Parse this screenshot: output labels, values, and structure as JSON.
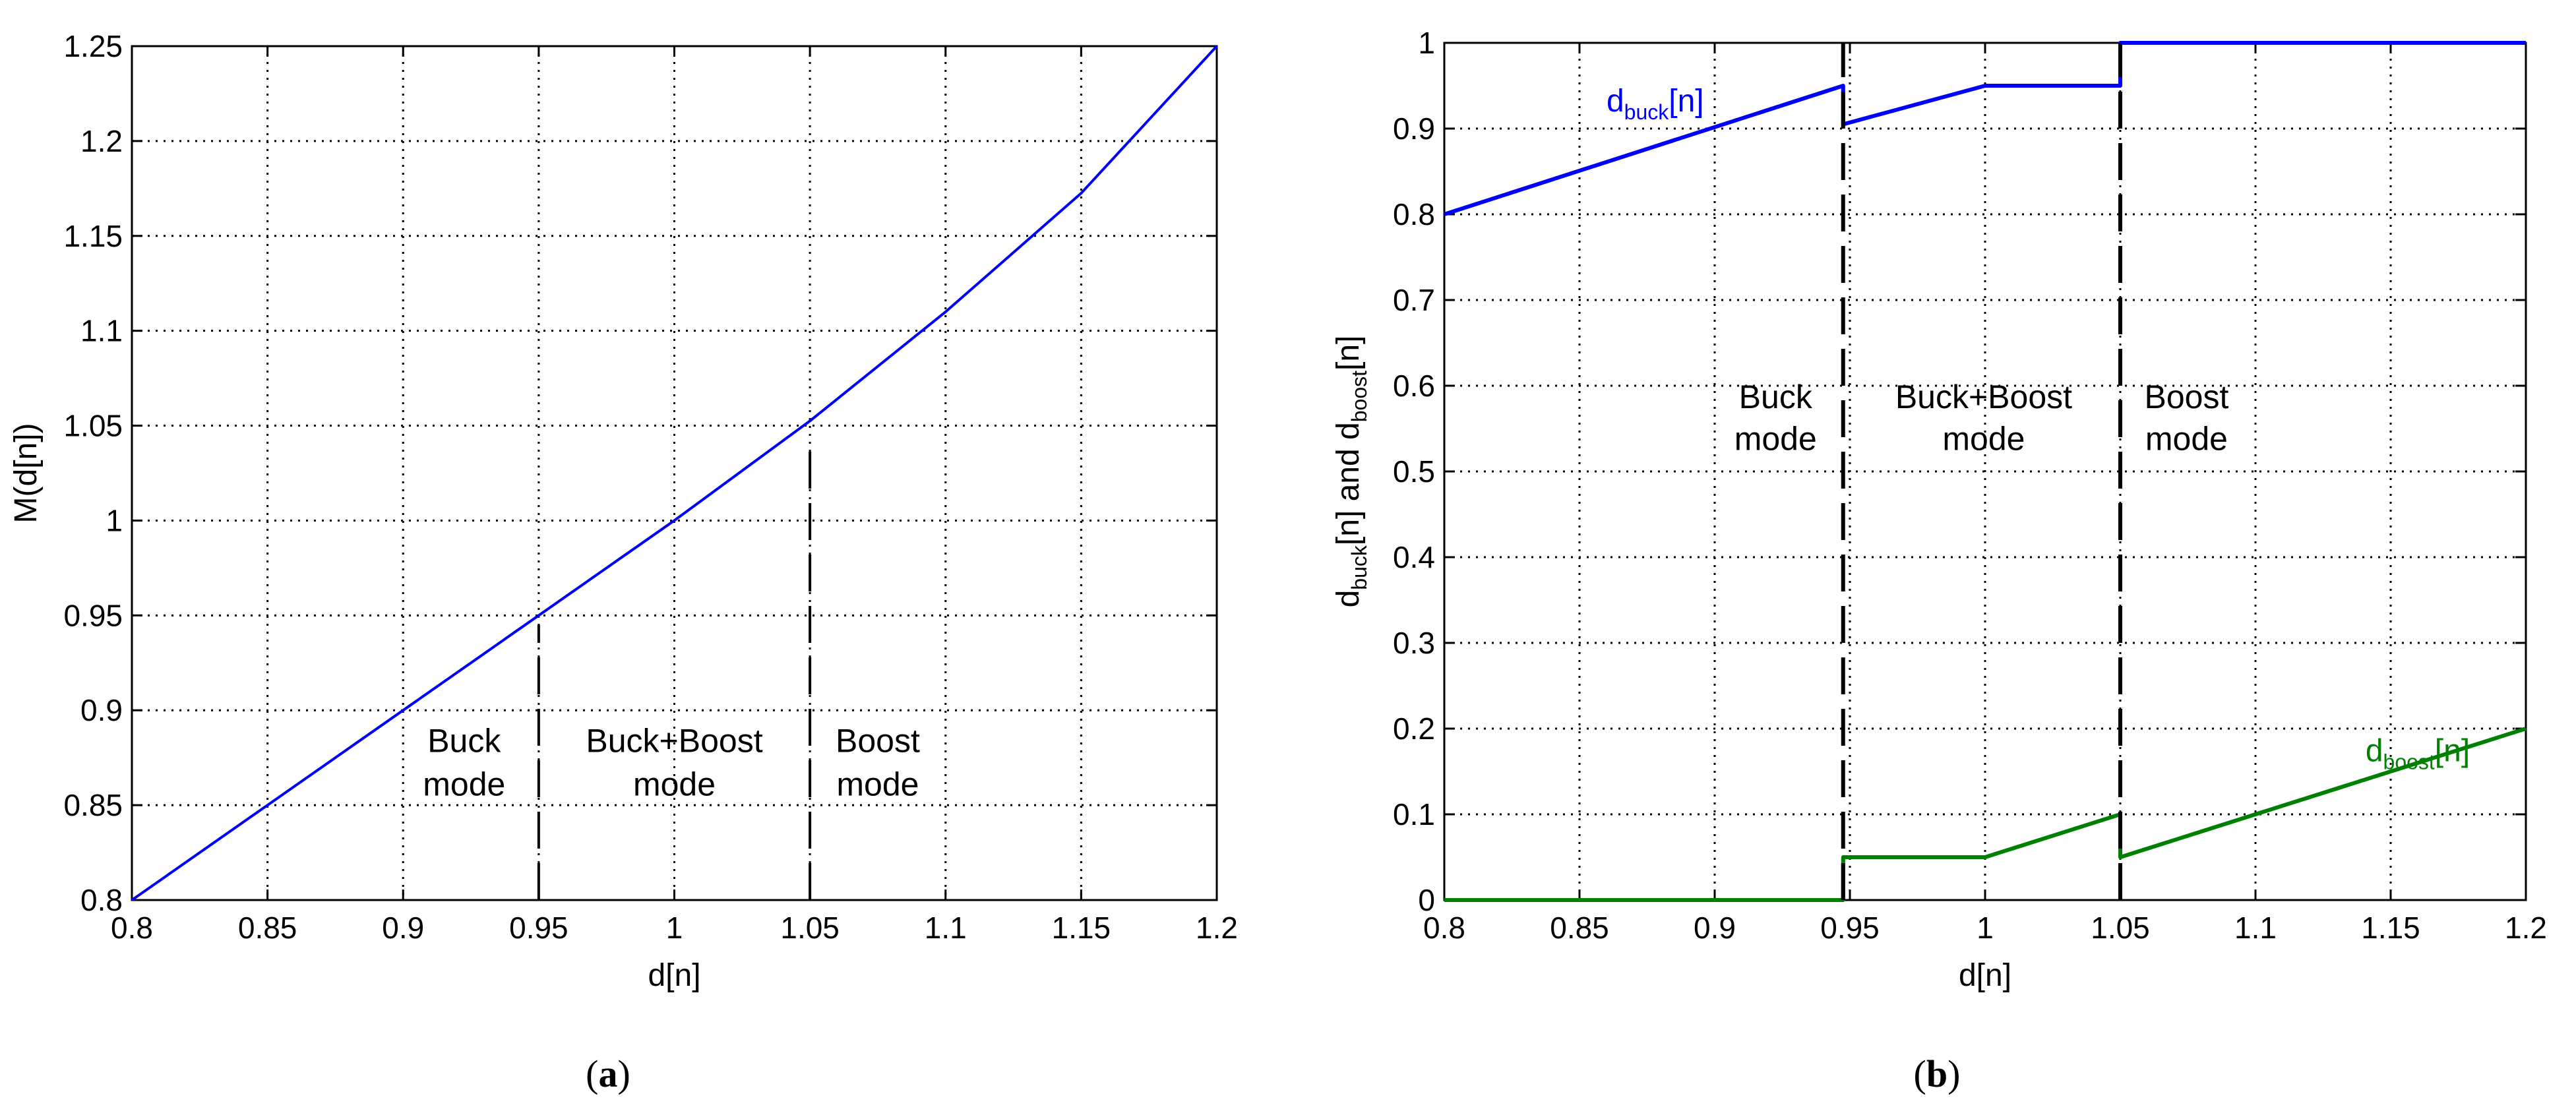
{
  "chart_data": [
    {
      "panel": "a",
      "caption_letter": "a",
      "type": "line",
      "xlabel": "d[n]",
      "ylabel": "M(d[n])",
      "xlim": [
        0.8,
        1.2
      ],
      "ylim": [
        0.8,
        1.25
      ],
      "x_ticks": [
        0.8,
        0.85,
        0.9,
        0.95,
        1,
        1.05,
        1.1,
        1.15,
        1.2
      ],
      "x_tick_labels": [
        "0.8",
        "0.85",
        "0.9",
        "0.95",
        "1",
        "1.05",
        "1.1",
        "1.15",
        "1.2"
      ],
      "y_ticks": [
        0.8,
        0.85,
        0.9,
        0.95,
        1,
        1.05,
        1.1,
        1.15,
        1.2,
        1.25
      ],
      "y_tick_labels": [
        "0.8",
        "0.85",
        "0.9",
        "0.95",
        "1",
        "1.05",
        "1.1",
        "1.15",
        "1.2",
        "1.25"
      ],
      "grid": true,
      "series": [
        {
          "color": "#0000ff",
          "x": [
            0.8,
            0.85,
            0.9,
            0.95,
            1.0,
            1.05,
            1.1,
            1.15,
            1.2
          ],
          "y": [
            0.8,
            0.85,
            0.9,
            0.95,
            1.0,
            1.0525,
            1.11,
            1.1725,
            1.25
          ]
        }
      ],
      "boundaries": [
        {
          "x": 0.95,
          "y_top": 0.945
        },
        {
          "x": 1.05,
          "y_top": 1.037
        }
      ],
      "region_labels": [
        {
          "lines": [
            "Buck",
            "mode"
          ],
          "x": 0.9225,
          "y_top": 0.878,
          "y_bottom": 0.855
        },
        {
          "lines": [
            "Buck+Boost",
            "mode"
          ],
          "x": 1.0,
          "y_top": 0.878,
          "y_bottom": 0.855
        },
        {
          "lines": [
            "Boost",
            "mode"
          ],
          "x": 1.075,
          "y_top": 0.878,
          "y_bottom": 0.855
        }
      ]
    },
    {
      "panel": "b",
      "caption_letter": "b",
      "type": "line",
      "xlabel": "d[n]",
      "ylabel": {
        "p1": "d",
        "s1": "buck",
        "p2": "[n] and d",
        "s2": "boost",
        "p3": "[n]"
      },
      "xlim": [
        0.8,
        1.2
      ],
      "ylim": [
        0,
        1
      ],
      "x_ticks": [
        0.8,
        0.85,
        0.9,
        0.95,
        1,
        1.05,
        1.1,
        1.15,
        1.2
      ],
      "x_tick_labels": [
        "0.8",
        "0.85",
        "0.9",
        "0.95",
        "1",
        "1.05",
        "1.1",
        "1.15",
        "1.2"
      ],
      "y_ticks": [
        0,
        0.1,
        0.2,
        0.3,
        0.4,
        0.5,
        0.6,
        0.7,
        0.8,
        0.9,
        1
      ],
      "y_tick_labels": [
        "0",
        "0.1",
        "0.2",
        "0.3",
        "0.4",
        "0.5",
        "0.6",
        "0.7",
        "0.8",
        "0.9",
        "1"
      ],
      "grid": true,
      "series": [
        {
          "label": {
            "main": "d",
            "sub": "buck",
            "tail": "[n]"
          },
          "label_at": [
            0.878,
            0.92
          ],
          "color": "#0000ff",
          "x": [
            0.8,
            0.9475,
            0.9475,
            1.0,
            1.05,
            1.05,
            1.2
          ],
          "y": [
            0.8,
            0.95,
            0.905,
            0.95,
            0.95,
            1.0,
            1.0
          ]
        },
        {
          "label": {
            "main": "d",
            "sub": "boost",
            "tail": "[n]"
          },
          "label_at": [
            1.16,
            0.162
          ],
          "color": "#008000",
          "x": [
            0.8,
            0.9475,
            0.9475,
            1.0,
            1.05,
            1.05,
            1.2
          ],
          "y": [
            0.0,
            0.0,
            0.05,
            0.05,
            0.1,
            0.05,
            0.2
          ]
        }
      ],
      "boundaries": [
        {
          "x": 0.9475,
          "y_top": 1.0
        },
        {
          "x": 1.05,
          "y_top": 1.0
        }
      ],
      "region_labels": [
        {
          "lines": [
            "Buck",
            "mode"
          ],
          "x": 0.9225,
          "y_top": 0.574,
          "y_bottom": 0.525
        },
        {
          "lines": [
            "Buck+Boost",
            "mode"
          ],
          "x": 0.9995,
          "y_top": 0.574,
          "y_bottom": 0.525
        },
        {
          "lines": [
            "Boost",
            "mode"
          ],
          "x": 1.0745,
          "y_top": 0.574,
          "y_bottom": 0.525
        }
      ]
    }
  ]
}
